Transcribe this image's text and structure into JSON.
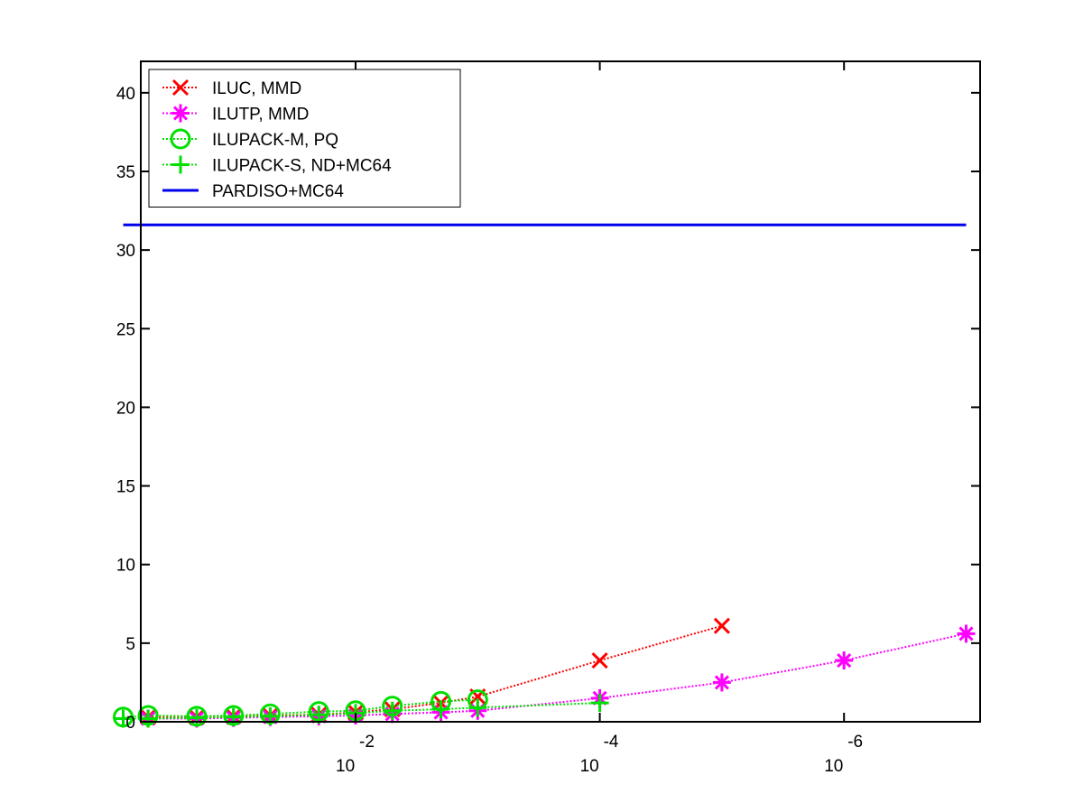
{
  "chart_data": {
    "type": "line",
    "xscale": "log",
    "x_direction": "reversed (decreasing toward the right)",
    "xlim": [
      1,
      1e-07
    ],
    "ylim": [
      0,
      42
    ],
    "grid": false,
    "legend_position": "top-left",
    "title": "",
    "xlabel": "",
    "ylabel": "",
    "y_ticks": [
      0,
      5,
      10,
      15,
      20,
      25,
      30,
      35,
      40
    ],
    "x_ticks": [
      {
        "value": 0.01,
        "base": "10",
        "exponent": "-2"
      },
      {
        "value": 0.0001,
        "base": "10",
        "exponent": "-4"
      },
      {
        "value": 1e-06,
        "base": "10",
        "exponent": "-6"
      }
    ],
    "series": [
      {
        "name": "ILUC, MMD",
        "color": "#ff0000",
        "marker": "x",
        "line": "dotted",
        "x": [
          0.5,
          0.2,
          0.1,
          0.05,
          0.02,
          0.01,
          0.005,
          0.002,
          0.001,
          0.0001,
          1e-05
        ],
        "y": [
          0.3,
          0.3,
          0.35,
          0.4,
          0.45,
          0.6,
          0.8,
          1.2,
          1.6,
          3.9,
          6.1
        ]
      },
      {
        "name": "ILUTP, MMD",
        "color": "#ff00ff",
        "marker": "asterisk",
        "line": "dotted",
        "x": [
          0.5,
          0.2,
          0.1,
          0.05,
          0.02,
          0.01,
          0.005,
          0.002,
          0.001,
          0.0001,
          1e-05,
          1e-06,
          1e-07
        ],
        "y": [
          0.2,
          0.2,
          0.25,
          0.3,
          0.35,
          0.4,
          0.5,
          0.6,
          0.7,
          1.5,
          2.5,
          3.9,
          5.6
        ]
      },
      {
        "name": "ILUPACK-M, PQ",
        "color": "#00e000",
        "marker": "circle",
        "line": "dotted",
        "x": [
          0.8,
          0.5,
          0.2,
          0.1,
          0.05,
          0.02,
          0.01,
          0.005,
          0.002,
          0.001
        ],
        "y": [
          0.3,
          0.4,
          0.35,
          0.4,
          0.5,
          0.65,
          0.7,
          1.0,
          1.3,
          1.4
        ]
      },
      {
        "name": "ILUPACK-S, ND+MC64",
        "color": "#00e000",
        "marker": "plus",
        "line": "dotted",
        "x": [
          0.8,
          0.5,
          0.2,
          0.1,
          0.05,
          0.02,
          0.01,
          0.005,
          0.002,
          0.001,
          0.0001
        ],
        "y": [
          0.2,
          0.2,
          0.25,
          0.3,
          0.35,
          0.45,
          0.55,
          0.7,
          0.8,
          0.9,
          1.2
        ]
      },
      {
        "name": "PARDISO+MC64",
        "color": "#0000ee",
        "marker": "none",
        "line": "solid",
        "x": [
          0.8,
          1e-07
        ],
        "y": [
          31.6,
          31.6
        ]
      }
    ]
  }
}
